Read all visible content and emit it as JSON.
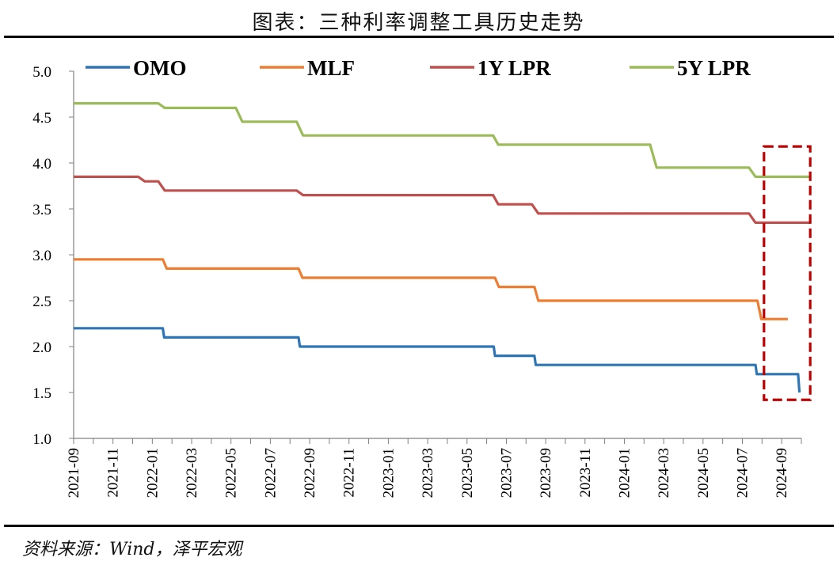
{
  "title": "图表：三种利率调整工具历史走势",
  "source": "资料来源：Wind，泽平宏观",
  "colors": {
    "OMO": "#2e75b6",
    "MLF": "#ed7d31",
    "1Y LPR": "#c0504d",
    "5Y LPR": "#9bbb59",
    "highlight": "#c00000"
  },
  "chart_data": {
    "type": "line",
    "title": "图表：三种利率调整工具历史走势",
    "xlabel": "",
    "ylabel": "",
    "ylim": [
      1.0,
      5.0
    ],
    "y_ticks": [
      "1.0",
      "1.5",
      "2.0",
      "2.5",
      "3.0",
      "3.5",
      "4.0",
      "4.5",
      "5.0"
    ],
    "x_range": [
      "2021-09",
      "2024-10"
    ],
    "x_ticks": [
      "2021-09",
      "2021-11",
      "2022-01",
      "2022-03",
      "2022-05",
      "2022-07",
      "2022-09",
      "2022-11",
      "2023-01",
      "2023-03",
      "2023-05",
      "2023-07",
      "2023-09",
      "2023-11",
      "2024-01",
      "2024-03",
      "2024-05",
      "2024-07",
      "2024-09"
    ],
    "grid": false,
    "legend": "top",
    "highlight_box": [
      "2024-08",
      "2024-10"
    ],
    "series": [
      {
        "name": "OMO",
        "points": [
          [
            "2021-09-01",
            2.2
          ],
          [
            "2022-01-17",
            2.2
          ],
          [
            "2022-01-19",
            2.1
          ],
          [
            "2022-08-15",
            2.1
          ],
          [
            "2022-08-17",
            2.0
          ],
          [
            "2023-06-13",
            2.0
          ],
          [
            "2023-06-15",
            1.9
          ],
          [
            "2023-08-15",
            1.9
          ],
          [
            "2023-08-17",
            1.8
          ],
          [
            "2024-07-22",
            1.8
          ],
          [
            "2024-07-24",
            1.7
          ],
          [
            "2024-09-26",
            1.7
          ],
          [
            "2024-09-28",
            1.5
          ]
        ]
      },
      {
        "name": "MLF",
        "points": [
          [
            "2021-09-01",
            2.95
          ],
          [
            "2022-01-17",
            2.95
          ],
          [
            "2022-01-23",
            2.85
          ],
          [
            "2022-08-15",
            2.85
          ],
          [
            "2022-08-21",
            2.75
          ],
          [
            "2023-06-15",
            2.75
          ],
          [
            "2023-06-21",
            2.65
          ],
          [
            "2023-08-15",
            2.65
          ],
          [
            "2023-08-21",
            2.5
          ],
          [
            "2024-07-25",
            2.5
          ],
          [
            "2024-07-31",
            2.3
          ],
          [
            "2024-09-10",
            2.3
          ]
        ]
      },
      {
        "name": "1Y LPR",
        "points": [
          [
            "2021-09-01",
            3.85
          ],
          [
            "2021-12-10",
            3.85
          ],
          [
            "2021-12-20",
            3.8
          ],
          [
            "2022-01-10",
            3.8
          ],
          [
            "2022-01-20",
            3.7
          ],
          [
            "2022-08-12",
            3.7
          ],
          [
            "2022-08-22",
            3.65
          ],
          [
            "2023-06-12",
            3.65
          ],
          [
            "2023-06-20",
            3.55
          ],
          [
            "2023-08-11",
            3.55
          ],
          [
            "2023-08-21",
            3.45
          ],
          [
            "2024-07-12",
            3.45
          ],
          [
            "2024-07-22",
            3.35
          ],
          [
            "2024-10-15",
            3.35
          ]
        ]
      },
      {
        "name": "5Y LPR",
        "points": [
          [
            "2021-09-01",
            4.65
          ],
          [
            "2022-01-10",
            4.65
          ],
          [
            "2022-01-20",
            4.6
          ],
          [
            "2022-05-10",
            4.6
          ],
          [
            "2022-05-20",
            4.45
          ],
          [
            "2022-08-12",
            4.45
          ],
          [
            "2022-08-22",
            4.3
          ],
          [
            "2023-06-12",
            4.3
          ],
          [
            "2023-06-20",
            4.2
          ],
          [
            "2024-02-10",
            4.2
          ],
          [
            "2024-02-20",
            3.95
          ],
          [
            "2024-07-12",
            3.95
          ],
          [
            "2024-07-22",
            3.85
          ],
          [
            "2024-10-15",
            3.85
          ]
        ]
      }
    ]
  }
}
